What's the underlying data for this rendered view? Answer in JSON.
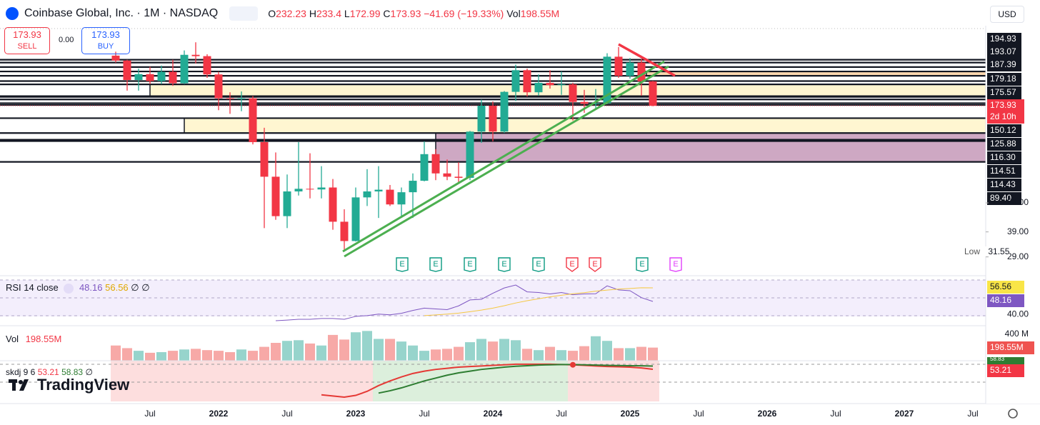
{
  "header": {
    "title": "Coinbase Global, Inc. · 1M · NASDAQ",
    "o": "O",
    "h": "H",
    "l": "L",
    "c": "C",
    "change": "−41.69 (−19.33%)",
    "currency": "USD"
  },
  "trade": {
    "sell_label": "SELL",
    "buy_label": "BUY",
    "spread": "0.00"
  },
  "branding": "TradingView",
  "chart_data": {
    "type": "candlestick",
    "log_scale": true,
    "categories": [
      null,
      null,
      null,
      "Jul",
      null,
      null,
      null,
      null,
      null,
      "2022",
      null,
      null,
      null,
      null,
      null,
      "Jul",
      null,
      null,
      null,
      null,
      null,
      "2023",
      null,
      null,
      null,
      null,
      null,
      "Jul",
      null,
      null,
      null,
      null,
      null,
      "2024",
      null,
      null,
      null,
      null,
      null,
      "Jul",
      null,
      null,
      null,
      null,
      null,
      "2025",
      null,
      null
    ],
    "future_xticks": [
      "Jul",
      "2026",
      "Jul",
      "2027",
      "Jul"
    ],
    "open": [
      315,
      297,
      236,
      253,
      233,
      260,
      227,
      318,
      313,
      252,
      190,
      189,
      190,
      113,
      75,
      47,
      63,
      65,
      64.5,
      66,
      44,
      35,
      58.7,
      63,
      64.3,
      54,
      62.4,
      71.5,
      98,
      78,
      75,
      74,
      128,
      174,
      128,
      205,
      265,
      204,
      228,
      222,
      224,
      182,
      178,
      179,
      311,
      248,
      290,
      232.23
    ],
    "high": [
      330,
      300,
      270,
      276,
      280,
      300,
      335,
      368.9,
      320,
      260,
      204,
      206,
      195,
      134,
      100,
      77,
      113,
      99,
      85,
      73,
      51,
      66,
      82,
      85,
      68,
      66,
      78,
      114,
      104,
      92,
      89,
      129,
      187,
      183,
      207,
      283,
      270,
      252,
      265,
      261,
      228,
      210,
      212,
      324,
      349,
      306,
      302,
      233.4
    ],
    "low": [
      290,
      208,
      208,
      225,
      225,
      220,
      225,
      287,
      242,
      165,
      158,
      163,
      110,
      40.8,
      45,
      40.8,
      60,
      58,
      58,
      40,
      31.55,
      34.8,
      53,
      46,
      53,
      46.5,
      46,
      71,
      72,
      72,
      69,
      72,
      112,
      114,
      126,
      184,
      194,
      196,
      213,
      198,
      146,
      160,
      167,
      178,
      242,
      240,
      196,
      172.99
    ],
    "close": [
      297,
      236,
      253,
      233,
      260,
      227,
      318,
      313,
      252,
      190,
      189,
      190,
      113,
      75,
      47,
      63,
      65,
      64.5,
      66,
      44,
      35,
      58.7,
      63,
      64.3,
      54,
      62.4,
      71.5,
      98,
      78,
      75,
      74,
      128,
      174,
      128,
      205,
      265,
      204,
      228,
      222,
      224,
      182,
      178,
      179,
      311,
      248,
      290,
      232.23,
      173.93
    ],
    "up_color": "#22ab94",
    "down_color": "#f23645",
    "ylim": [
      23.4,
      434
    ],
    "yticks": [
      {
        "value": 55,
        "label": "55.00"
      },
      {
        "value": 39,
        "label": "39.00"
      },
      {
        "value": 29,
        "label": "29.00"
      }
    ],
    "low_label": "Low",
    "countdown": "2d 10h",
    "levels": [
      194.93,
      193.07,
      187.39,
      179.18,
      175.57,
      150.12,
      125.88,
      {
        "value": 116.3,
        "label": "116.30"
      },
      114.51,
      114.43,
      {
        "value": 89.4,
        "label": "89.40"
      }
    ],
    "extra_levels": [
      300,
      290,
      275,
      261,
      248,
      233,
      224
    ],
    "zones": [
      {
        "top": 224,
        "bottom": 195,
        "color": "#fff5cc"
      },
      {
        "top": 150.12,
        "bottom": 125.88,
        "color": "#fff5cc"
      },
      {
        "top": 125.88,
        "bottom": 89.4,
        "color": "#c99ebd"
      },
      {
        "top": 261,
        "bottom": 248,
        "color": "#fbd3a6"
      }
    ],
    "earnings": [
      "E",
      "E",
      "E",
      "E",
      "E",
      "E",
      "E",
      "E",
      "E"
    ],
    "volume": {
      "name": "Vol",
      "last_label": "198.55M",
      "ylim": [
        0,
        486000000
      ],
      "yticks": [
        {
          "value": 400000000,
          "label": "400 M"
        }
      ],
      "up_color": "#97d4cc",
      "down_color": "#f7a9a7",
      "values": [
        230000000,
        190000000,
        150000000,
        120000000,
        130000000,
        150000000,
        170000000,
        180000000,
        160000000,
        150000000,
        130000000,
        170000000,
        150000000,
        210000000,
        270000000,
        300000000,
        310000000,
        260000000,
        230000000,
        390000000,
        320000000,
        430000000,
        450000000,
        330000000,
        330000000,
        290000000,
        230000000,
        150000000,
        170000000,
        180000000,
        210000000,
        280000000,
        330000000,
        290000000,
        330000000,
        310000000,
        180000000,
        160000000,
        210000000,
        160000000,
        150000000,
        220000000,
        370000000,
        300000000,
        190000000,
        190000000,
        210000000,
        198550000
      ]
    },
    "rsi": {
      "name": "RSI 14 close",
      "na": "∅",
      "ylim": [
        33.13,
        64.08
      ],
      "yticks": [
        {
          "value": 40,
          "label": "40.00"
        }
      ],
      "series": [
        {
          "color": "#7e57c2",
          "values": [
            null,
            null,
            null,
            null,
            null,
            null,
            null,
            null,
            null,
            null,
            null,
            null,
            null,
            null,
            36.2,
            36.6,
            37.1,
            37.1,
            37.6,
            37.6,
            37.1,
            38.9,
            39.4,
            40.3,
            39.9,
            40.8,
            42.6,
            44.0,
            43.5,
            43.1,
            45.4,
            49.1,
            49.5,
            53.2,
            56.5,
            58.3,
            54.1,
            53.7,
            52.8,
            53.7,
            52.3,
            52.8,
            52.9,
            57.8,
            55.3,
            54.8,
            50.5,
            48.16
          ]
        },
        {
          "color": "#f5c842",
          "values": [
            null,
            null,
            null,
            null,
            null,
            null,
            null,
            null,
            null,
            null,
            null,
            null,
            null,
            null,
            null,
            null,
            null,
            null,
            null,
            null,
            null,
            null,
            null,
            null,
            null,
            null,
            null,
            39.4,
            39.8,
            40.3,
            40.9,
            41.8,
            42.8,
            44.0,
            45.5,
            47.2,
            48.6,
            49.8,
            51.0,
            52.0,
            52.9,
            53.6,
            54.5,
            55.2,
            55.8,
            56.2,
            56.6,
            56.56
          ]
        }
      ]
    },
    "skdj": {
      "name": "skdj 9 6",
      "na": "∅",
      "ylim": [
        -2.5,
        68.1
      ],
      "series": [
        {
          "color": "#e53935",
          "values": [
            null,
            null,
            null,
            null,
            null,
            null,
            null,
            null,
            null,
            null,
            null,
            null,
            null,
            null,
            null,
            null,
            null,
            null,
            9,
            7,
            5,
            8,
            15,
            25,
            33,
            40,
            46,
            50,
            53,
            55,
            57,
            58,
            59,
            60,
            61,
            62,
            62,
            62,
            62,
            61.5,
            61,
            60,
            59,
            58,
            57.5,
            57,
            55.5,
            53.21
          ]
        },
        {
          "color": "#2e7d32",
          "values": [
            null,
            null,
            null,
            null,
            null,
            null,
            null,
            null,
            null,
            null,
            null,
            null,
            null,
            null,
            null,
            null,
            null,
            null,
            null,
            null,
            null,
            null,
            null,
            12,
            16,
            21,
            27,
            33,
            38,
            43,
            47,
            50,
            53,
            55,
            57,
            58.5,
            59.5,
            60.5,
            61,
            61.5,
            61.5,
            61,
            60.5,
            60,
            59.8,
            59.5,
            59.2,
            58.83
          ]
        }
      ]
    }
  }
}
